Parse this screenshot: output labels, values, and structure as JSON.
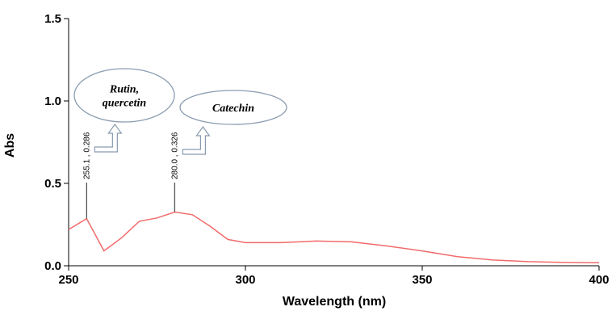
{
  "chart_data": {
    "type": "line",
    "xlabel": "Wavelength (nm)",
    "ylabel": "Abs",
    "xlim": [
      250,
      400
    ],
    "ylim": [
      0,
      1.5
    ],
    "x_ticks": [
      "250",
      "300",
      "350",
      "400"
    ],
    "y_ticks": [
      "0.0",
      "0.5",
      "1.0",
      "1.5"
    ],
    "grid": false,
    "line_color": "#f26b6b",
    "series": [
      {
        "x": [
          250,
          255.1,
          260,
          265,
          270,
          275,
          280,
          285,
          290,
          295,
          300,
          310,
          320,
          330,
          340,
          350,
          360,
          370,
          380,
          390,
          400
        ],
        "values": [
          0.22,
          0.286,
          0.09,
          0.17,
          0.27,
          0.29,
          0.326,
          0.31,
          0.24,
          0.16,
          0.14,
          0.14,
          0.15,
          0.145,
          0.12,
          0.09,
          0.055,
          0.035,
          0.025,
          0.02,
          0.018
        ]
      }
    ],
    "peaks": [
      {
        "x": 255.1,
        "y": 0.286,
        "label": "255.1 , 0.286"
      },
      {
        "x": 280.0,
        "y": 0.326,
        "label": "280.0 , 0.326"
      }
    ],
    "annotations": [
      {
        "lines": [
          "Rutin,",
          "quercetin"
        ],
        "peak": 0
      },
      {
        "lines": [
          "Catechin"
        ],
        "peak": 1
      }
    ]
  }
}
